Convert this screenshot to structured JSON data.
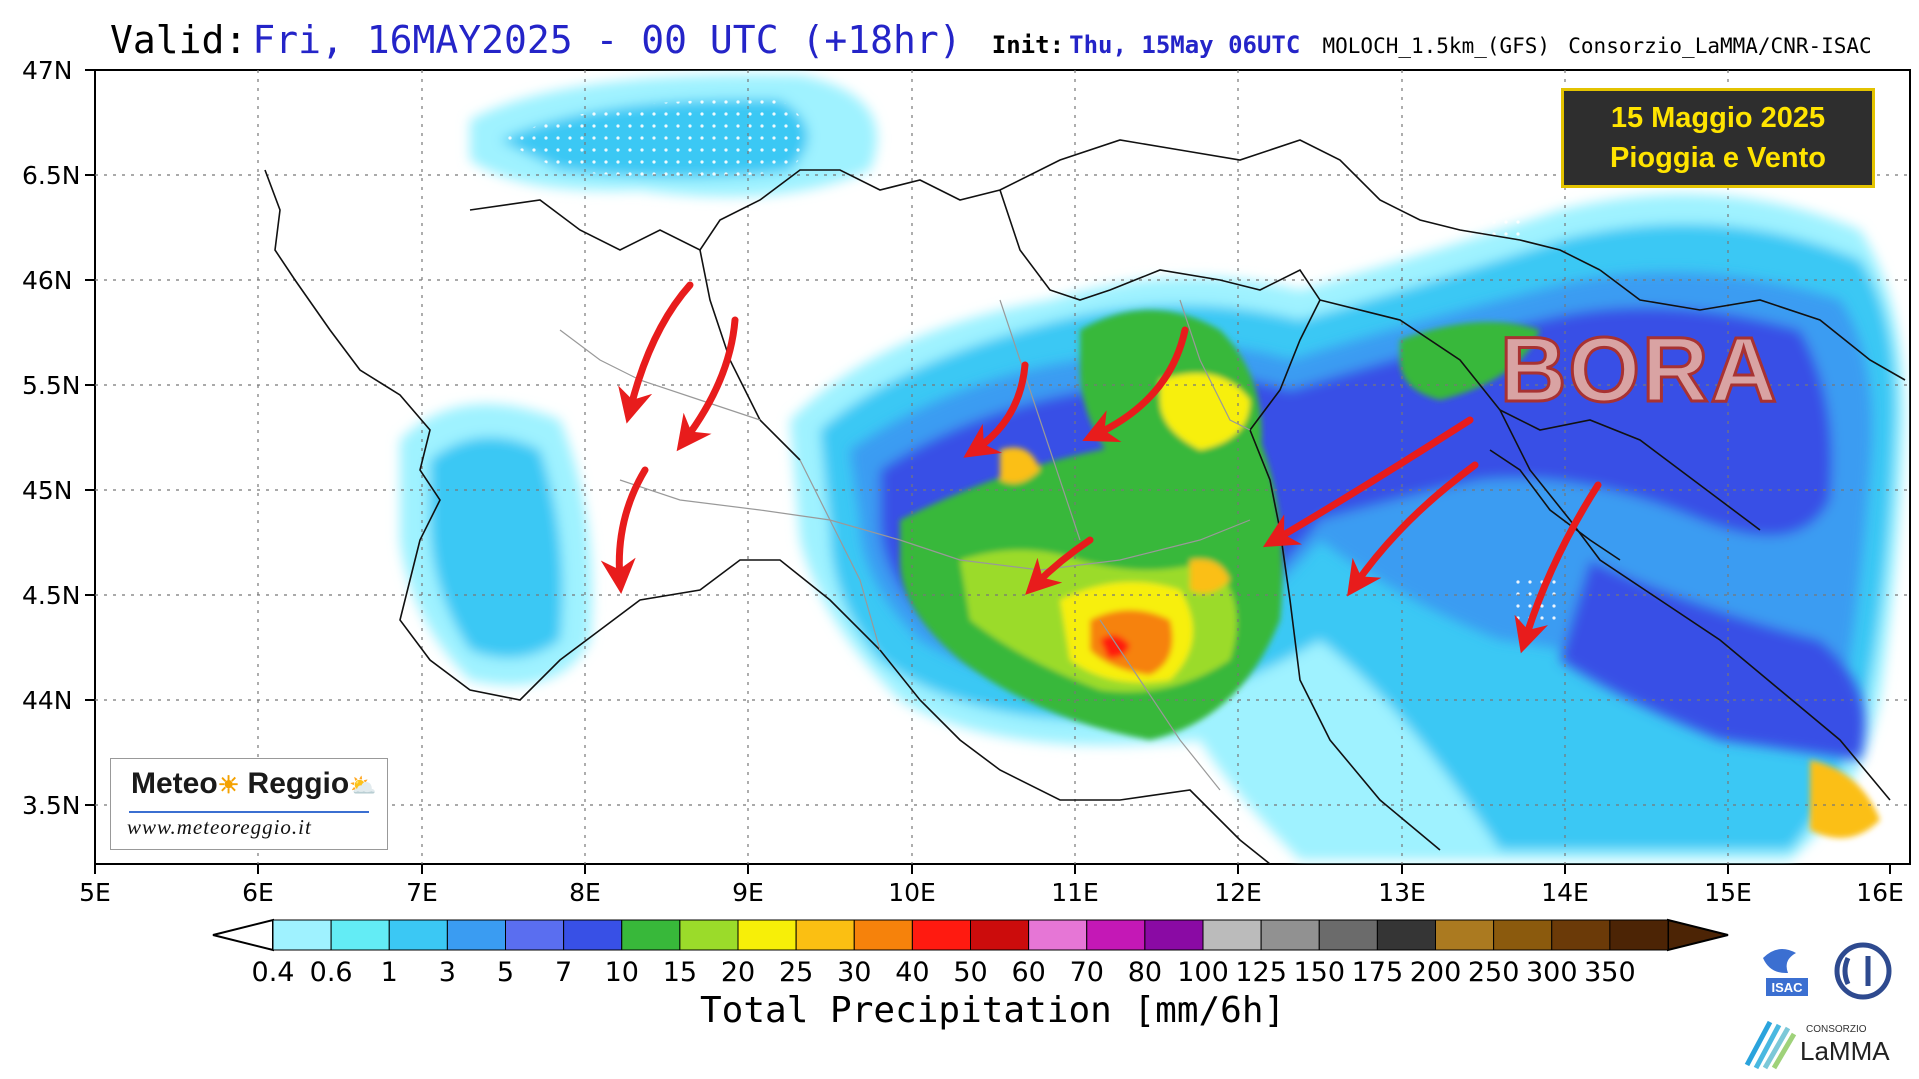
{
  "header": {
    "valid_label": "Valid:",
    "valid_value": "Fri, 16MAY2025 - 00 UTC (+18hr)",
    "init_label": "Init:",
    "init_value": "Thu, 15May 06UTC",
    "model": "MOLOCH_1.5km_(GFS)",
    "provider": "Consorzio_LaMMA/CNR-ISAC"
  },
  "map": {
    "lat_labels": [
      "47N",
      "6.5N",
      "46N",
      "5.5N",
      "45N",
      "4.5N",
      "44N",
      "3.5N"
    ],
    "lon_labels": [
      "5E",
      "6E",
      "7E",
      "8E",
      "9E",
      "10E",
      "11E",
      "12E",
      "13E",
      "14E",
      "15E",
      "16E"
    ],
    "lon_range": [
      5,
      16
    ],
    "lat_range": [
      43.25,
      47
    ],
    "grid": true,
    "wind_arrow_color": "#e81c1c"
  },
  "annotation": {
    "line1": "15 Maggio 2025",
    "line2": "Pioggia e Vento"
  },
  "bora_label": "BORA",
  "logo": {
    "name_left": "Meteo",
    "name_right": "Reggio",
    "url": "www.meteoreggio.it"
  },
  "colorbar": {
    "title": "Total Precipitation [mm/6h]",
    "labels": [
      "0.4",
      "0.6",
      "1",
      "3",
      "5",
      "7",
      "10",
      "15",
      "20",
      "25",
      "30",
      "40",
      "50",
      "60",
      "70",
      "80",
      "100",
      "125",
      "150",
      "175",
      "200",
      "250",
      "300",
      "350"
    ],
    "colors": [
      "#9ff2ff",
      "#63ecf5",
      "#3bc8f4",
      "#3a9cf2",
      "#5a6ef0",
      "#3850e6",
      "#38b83a",
      "#9bdb2a",
      "#f7ef08",
      "#fbbf12",
      "#f6820b",
      "#ff1a10",
      "#cc0c0c",
      "#e676d6",
      "#c418b6",
      "#8a0aa4",
      "#bbbbbb",
      "#919191",
      "#6b6b6b",
      "#353535",
      "#ab7a20",
      "#8b5a0d",
      "#6b3a08",
      "#4c2405"
    ]
  },
  "logos": {
    "isac": "ISAC",
    "lamma_small": "CONSORZIO",
    "lamma": "LaMMA"
  }
}
